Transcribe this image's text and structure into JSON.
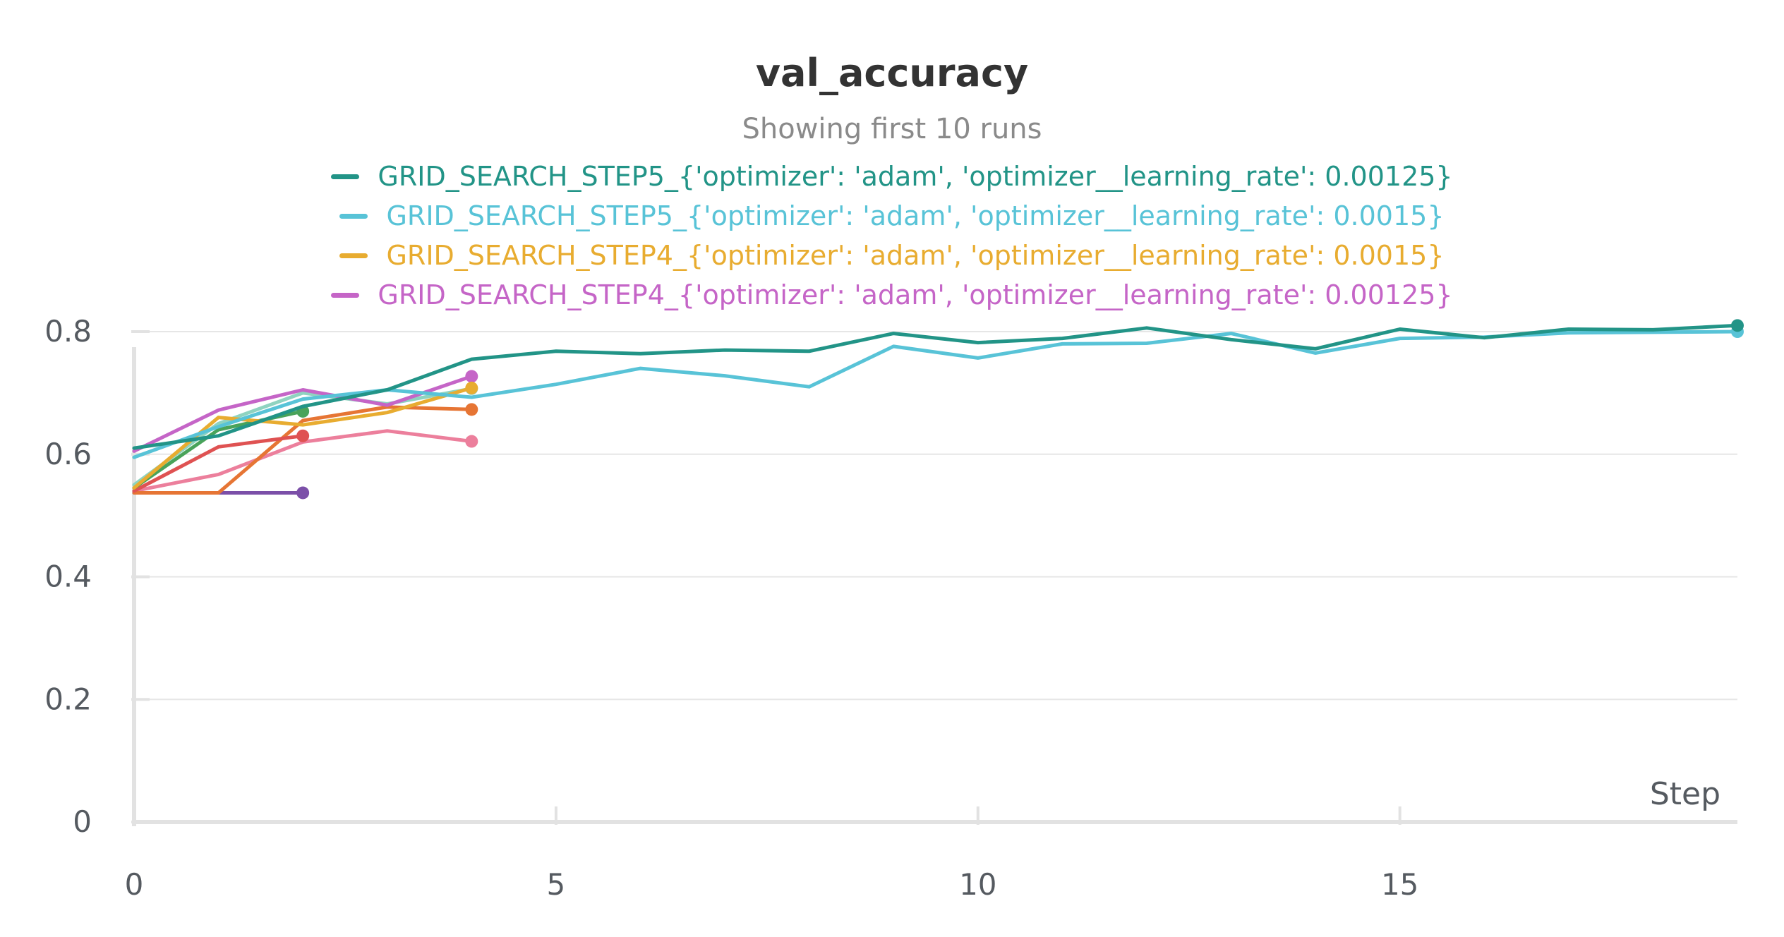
{
  "chart_data": {
    "type": "line",
    "title": "val_accuracy",
    "subtitle": "Showing first 10 runs",
    "xlabel": "Step",
    "ylabel": "",
    "xlim": [
      0,
      19
    ],
    "ylim": [
      0,
      0.8
    ],
    "x_ticks": [
      0,
      5,
      10,
      15
    ],
    "x_tick_labels": [
      "0",
      "5",
      "10",
      "15"
    ],
    "y_ticks": [
      0,
      0.2,
      0.4,
      0.6,
      0.8
    ],
    "y_tick_labels": [
      "0",
      "0.2",
      "0.4",
      "0.6",
      "0.8"
    ],
    "grid": "horizontal",
    "legend_position": "top-center",
    "series": [
      {
        "name": "GRID_SEARCH_STEP5_{'optimizer': 'adam', 'optimizer__learning_rate': 0.00125}",
        "color": "#229487",
        "x": [
          0,
          1,
          2,
          3,
          4,
          5,
          6,
          7,
          8,
          9,
          10,
          11,
          12,
          13,
          14,
          15,
          16,
          17,
          18,
          19
        ],
        "values": [
          0.61,
          0.63,
          0.678,
          0.705,
          0.755,
          0.768,
          0.764,
          0.77,
          0.768,
          0.797,
          0.782,
          0.789,
          0.806,
          0.787,
          0.772,
          0.804,
          0.79,
          0.804,
          0.803,
          0.81
        ]
      },
      {
        "name": "GRID_SEARCH_STEP5_{'optimizer': 'adam', 'optimizer__learning_rate': 0.0015}",
        "color": "#58c3d7",
        "x": [
          0,
          1,
          2,
          3,
          4,
          5,
          6,
          7,
          8,
          9,
          10,
          11,
          12,
          13,
          14,
          15,
          16,
          17,
          18,
          19
        ],
        "values": [
          0.595,
          0.645,
          0.69,
          0.705,
          0.693,
          0.714,
          0.74,
          0.728,
          0.71,
          0.776,
          0.757,
          0.78,
          0.781,
          0.797,
          0.765,
          0.789,
          0.791,
          0.798,
          0.799,
          0.8
        ]
      },
      {
        "name": "GRID_SEARCH_STEP4_{'optimizer': 'adam', 'optimizer__learning_rate': 0.0015}",
        "color": "#e8ac30",
        "x": [
          0,
          1,
          2,
          3,
          4
        ],
        "values": [
          0.545,
          0.66,
          0.648,
          0.668,
          0.708
        ]
      },
      {
        "name": "GRID_SEARCH_STEP4_{'optimizer': 'adam', 'optimizer__learning_rate': 0.00125}",
        "color": "#c565c7",
        "x": [
          0,
          1,
          2,
          3,
          4
        ],
        "values": [
          0.605,
          0.672,
          0.705,
          0.68,
          0.727
        ]
      },
      {
        "name": "",
        "color": "#49a35a",
        "x": [
          0,
          1,
          2
        ],
        "values": [
          0.545,
          0.64,
          0.67
        ]
      },
      {
        "name": "",
        "color": "#8fd3c0",
        "x": [
          0,
          1,
          2,
          3,
          4
        ],
        "values": [
          0.55,
          0.65,
          0.7,
          0.682,
          0.707
        ]
      },
      {
        "name": "",
        "color": "#df5252",
        "x": [
          0,
          1,
          2
        ],
        "values": [
          0.54,
          0.612,
          0.63
        ]
      },
      {
        "name": "",
        "color": "#e67534",
        "x": [
          0,
          1,
          2,
          3,
          4
        ],
        "values": [
          0.537,
          0.537,
          0.655,
          0.677,
          0.673
        ]
      },
      {
        "name": "",
        "color": "#ec7f9c",
        "x": [
          0,
          1,
          2,
          3,
          4
        ],
        "values": [
          0.54,
          0.567,
          0.62,
          0.638,
          0.621
        ]
      },
      {
        "name": "",
        "color": "#7b4fa8",
        "x": [
          0,
          1,
          2
        ],
        "values": [
          0.537,
          0.537,
          0.537
        ]
      }
    ]
  }
}
